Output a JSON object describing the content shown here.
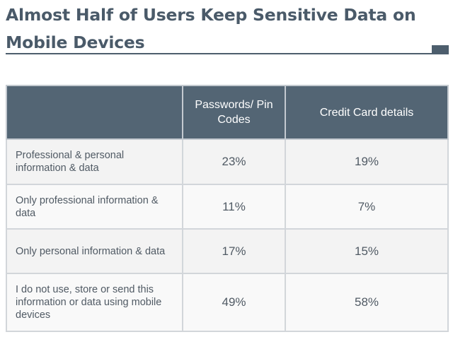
{
  "title": "Almost Half of Users Keep Sensitive Data on Mobile Devices",
  "colors": {
    "title": "#4a5a69",
    "header_bg": "#536574",
    "header_text": "#ffffff",
    "row_bg": "#f3f3f3",
    "rule": "#4d5e6d"
  },
  "table": {
    "headers": [
      "",
      "Passwords/ Pin Codes",
      "Credit Card details"
    ],
    "rows": [
      {
        "label": "Professional & personal information & data",
        "passwords": "23%",
        "credit_card": "19%"
      },
      {
        "label": "Only professional information & data",
        "passwords": "11%",
        "credit_card": "7%"
      },
      {
        "label": "Only personal information & data",
        "passwords": "17%",
        "credit_card": "15%"
      },
      {
        "label": "I do not use, store or send this information or data using mobile devices",
        "passwords": "49%",
        "credit_card": "58%"
      }
    ]
  }
}
